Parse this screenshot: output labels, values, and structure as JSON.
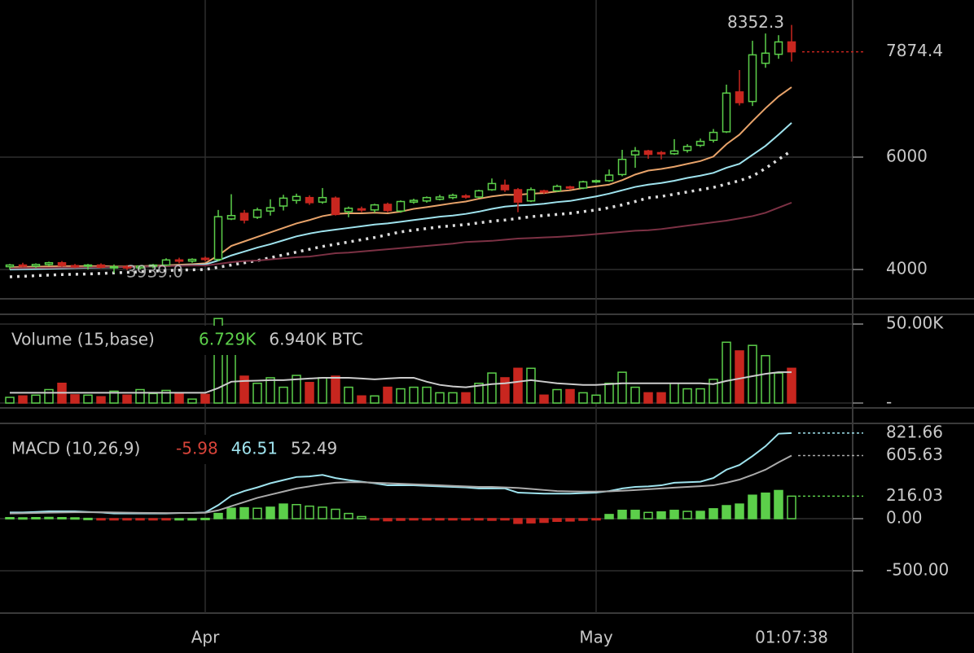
{
  "chart_data": {
    "type": "candlestick",
    "categories": [
      null,
      null,
      null,
      null,
      null,
      null,
      null,
      null,
      null,
      null,
      null,
      null,
      null,
      null,
      null,
      "Apr",
      null,
      null,
      null,
      null,
      null,
      null,
      null,
      null,
      null,
      null,
      null,
      null,
      null,
      null,
      null,
      null,
      null,
      null,
      null,
      null,
      null,
      null,
      null,
      null,
      null,
      null,
      null,
      null,
      null,
      "May",
      null,
      null,
      null,
      null,
      null,
      null,
      null,
      null,
      null,
      null,
      null,
      null,
      null,
      null,
      null
    ],
    "time_label": "01:07:38",
    "price": {
      "open": [
        4050,
        4080,
        4060,
        4090,
        4120,
        4070,
        4060,
        4080,
        4040,
        4050,
        4030,
        4060,
        4080,
        4170,
        4150,
        4200,
        4180,
        4900,
        5000,
        4930,
        5040,
        5130,
        5230,
        5280,
        5200,
        5270,
        5030,
        5080,
        5060,
        5160,
        5040,
        5200,
        5220,
        5250,
        5280,
        5310,
        5290,
        5420,
        5500,
        5420,
        5220,
        5400,
        5400,
        5470,
        5450,
        5560,
        5580,
        5690,
        6040,
        6110,
        6080,
        6060,
        6120,
        6210,
        6300,
        6450,
        7160,
        6990,
        7670,
        7830,
        8050
      ],
      "high": [
        4100,
        4120,
        4110,
        4140,
        4150,
        4100,
        4100,
        4110,
        4090,
        4080,
        4070,
        4100,
        4200,
        4210,
        4200,
        4230,
        5060,
        5340,
        5060,
        5100,
        5250,
        5330,
        5350,
        5320,
        5450,
        5300,
        5120,
        5120,
        5170,
        5190,
        5230,
        5260,
        5300,
        5330,
        5350,
        5340,
        5420,
        5620,
        5600,
        5450,
        5460,
        5420,
        5510,
        5490,
        5580,
        5600,
        5780,
        6130,
        6180,
        6130,
        6110,
        6320,
        6230,
        6330,
        6500,
        7290,
        7550,
        8070,
        8200,
        8170,
        8352.3
      ],
      "low": [
        4000,
        4040,
        4030,
        4060,
        4050,
        4020,
        4000,
        4020,
        3939,
        3990,
        4000,
        4020,
        4060,
        4110,
        4120,
        4150,
        4150,
        4880,
        4820,
        4900,
        4960,
        5050,
        5170,
        5150,
        5170,
        4960,
        4930,
        5020,
        5010,
        5020,
        5010,
        5170,
        5190,
        5230,
        5250,
        5260,
        5270,
        5400,
        5380,
        5020,
        5200,
        5340,
        5380,
        5420,
        5430,
        5540,
        5560,
        5660,
        5810,
        5970,
        5960,
        6040,
        6080,
        6180,
        6260,
        6430,
        6920,
        6910,
        7590,
        7750,
        7700
      ],
      "close": [
        4080,
        4060,
        4090,
        4120,
        4070,
        4060,
        4080,
        4040,
        4050,
        4030,
        4060,
        4080,
        4170,
        4150,
        4180,
        4180,
        4940,
        4960,
        4880,
        5060,
        5100,
        5270,
        5300,
        5190,
        5280,
        4980,
        5090,
        5060,
        5150,
        5050,
        5210,
        5230,
        5280,
        5290,
        5320,
        5290,
        5400,
        5530,
        5420,
        5200,
        5420,
        5380,
        5480,
        5450,
        5560,
        5580,
        5680,
        5960,
        6110,
        6050,
        6060,
        6110,
        6190,
        6280,
        6440,
        7140,
        6970,
        7820,
        7850,
        8050,
        7874.4
      ],
      "low_label": {
        "value": 3939,
        "label": "3939.0"
      },
      "up_color": "#5ccf4a",
      "down_color": "#c8261f",
      "ylim": [
        3493,
        8796
      ],
      "yticks": [
        4000,
        6000
      ],
      "grid": true,
      "series": [
        {
          "color": "#e8a36a",
          "dashed": false,
          "values": [
            4040,
            4045,
            4050,
            4055,
            4060,
            4060,
            4060,
            4060,
            4055,
            4055,
            4060,
            4065,
            4075,
            4085,
            4095,
            4110,
            4250,
            4420,
            4500,
            4580,
            4660,
            4740,
            4820,
            4880,
            4950,
            4990,
            5000,
            5000,
            5010,
            5000,
            5030,
            5080,
            5110,
            5145,
            5180,
            5210,
            5260,
            5300,
            5330,
            5330,
            5350,
            5360,
            5390,
            5410,
            5450,
            5480,
            5510,
            5590,
            5690,
            5760,
            5790,
            5830,
            5880,
            5930,
            6010,
            6230,
            6400,
            6640,
            6870,
            7080,
            7245
          ]
        },
        {
          "color": "#9fe3ee",
          "dashed": false,
          "values": [
            4000,
            4005,
            4010,
            4015,
            4020,
            4025,
            4030,
            4035,
            4040,
            4045,
            4050,
            4055,
            4060,
            4070,
            4080,
            4090,
            4160,
            4250,
            4320,
            4390,
            4450,
            4520,
            4590,
            4640,
            4680,
            4710,
            4740,
            4770,
            4800,
            4820,
            4850,
            4880,
            4910,
            4940,
            4960,
            4990,
            5030,
            5080,
            5120,
            5140,
            5150,
            5170,
            5200,
            5220,
            5260,
            5300,
            5350,
            5410,
            5470,
            5510,
            5540,
            5580,
            5630,
            5670,
            5720,
            5810,
            5880,
            6040,
            6200,
            6400,
            6610
          ]
        },
        {
          "color": "#dddddd",
          "dashed": true,
          "values": [
            3870,
            3880,
            3890,
            3900,
            3910,
            3915,
            3920,
            3930,
            3940,
            3950,
            3960,
            3970,
            3980,
            3990,
            3995,
            4000,
            4040,
            4080,
            4120,
            4160,
            4210,
            4260,
            4310,
            4360,
            4410,
            4450,
            4490,
            4530,
            4570,
            4620,
            4670,
            4700,
            4730,
            4760,
            4780,
            4800,
            4830,
            4860,
            4880,
            4910,
            4940,
            4960,
            4980,
            5000,
            5030,
            5060,
            5100,
            5150,
            5210,
            5275,
            5300,
            5340,
            5380,
            5420,
            5460,
            5520,
            5580,
            5660,
            5800,
            5960,
            6115
          ]
        },
        {
          "color": "#7c3144",
          "dashed": false,
          "values": [
            4020,
            4025,
            4030,
            4030,
            4035,
            4035,
            4040,
            4040,
            4045,
            4045,
            4050,
            4055,
            4060,
            4065,
            4070,
            4070,
            4100,
            4130,
            4150,
            4160,
            4180,
            4200,
            4220,
            4230,
            4260,
            4290,
            4300,
            4320,
            4340,
            4360,
            4380,
            4400,
            4420,
            4440,
            4460,
            4490,
            4500,
            4510,
            4530,
            4550,
            4560,
            4570,
            4580,
            4595,
            4610,
            4630,
            4650,
            4670,
            4690,
            4700,
            4720,
            4750,
            4780,
            4810,
            4840,
            4870,
            4910,
            4950,
            5010,
            5100,
            5190
          ]
        }
      ]
    },
    "volume": {
      "title": "Volume (15,base)",
      "readouts": [
        "6.729K",
        "6.940K BTC"
      ],
      "values": [
        3600,
        4500,
        5000,
        8500,
        12500,
        5200,
        5000,
        4000,
        7500,
        5000,
        8500,
        6000,
        8000,
        6000,
        2500,
        5500,
        53500,
        40000,
        17000,
        12500,
        16000,
        10000,
        17500,
        13000,
        16000,
        17000,
        10000,
        4500,
        4500,
        10000,
        9000,
        10000,
        10000,
        6500,
        6500,
        6500,
        12500,
        19000,
        16000,
        22000,
        22000,
        5000,
        8500,
        8500,
        6500,
        5000,
        12500,
        19500,
        10000,
        6500,
        6500,
        12500,
        9000,
        9000,
        15000,
        38500,
        33000,
        36500,
        30000,
        19000,
        22000
      ],
      "ylim": [
        0,
        56186
      ],
      "yticks": [
        {
          "value": 50000,
          "label": "50.00K"
        },
        {
          "value": 0,
          "label": "-"
        }
      ],
      "series": [
        {
          "color": "#cccccc",
          "values": [
            6500,
            6500,
            6500,
            6500,
            6500,
            6500,
            6500,
            6500,
            6500,
            6500,
            6500,
            6500,
            6500,
            6500,
            6500,
            6500,
            9500,
            13500,
            14000,
            14200,
            14500,
            14500,
            15000,
            15500,
            16000,
            16000,
            16000,
            15500,
            15000,
            15500,
            16000,
            16000,
            13500,
            11500,
            10500,
            10000,
            11000,
            12000,
            12500,
            13500,
            14500,
            13500,
            12500,
            12000,
            11500,
            11500,
            12000,
            12500,
            12500,
            12500,
            12500,
            12500,
            12500,
            12500,
            12000,
            14000,
            15500,
            17000,
            18500,
            19500,
            19500
          ]
        }
      ]
    },
    "macd": {
      "title": "MACD (10,26,9)",
      "readouts": [
        "-5.98",
        "46.51",
        "52.49"
      ],
      "ylim": [
        -898,
        914
      ],
      "yticks": [
        {
          "value": 0,
          "label": "0.00"
        },
        {
          "value": -500,
          "label": "-500.00"
        }
      ],
      "series": [
        {
          "color": "#9fe3ee",
          "values": [
            60,
            60,
            65,
            70,
            70,
            70,
            65,
            60,
            50,
            50,
            50,
            50,
            50,
            55,
            55,
            60,
            130,
            220,
            265,
            300,
            340,
            370,
            400,
            405,
            420,
            390,
            370,
            355,
            340,
            320,
            320,
            320,
            315,
            310,
            305,
            300,
            290,
            290,
            290,
            250,
            245,
            240,
            240,
            240,
            245,
            250,
            265,
            290,
            305,
            310,
            320,
            345,
            350,
            355,
            390,
            470,
            515,
            600,
            695,
            815,
            821.66
          ]
        },
        {
          "color": "#aaaaaa",
          "values": [
            50,
            52,
            55,
            58,
            60,
            62,
            62,
            62,
            60,
            58,
            56,
            55,
            54,
            54,
            55,
            57,
            80,
            120,
            160,
            200,
            230,
            260,
            290,
            310,
            330,
            345,
            350,
            350,
            345,
            340,
            335,
            330,
            325,
            320,
            315,
            310,
            305,
            305,
            300,
            295,
            285,
            275,
            265,
            262,
            260,
            260,
            262,
            268,
            275,
            282,
            290,
            298,
            305,
            312,
            320,
            345,
            375,
            420,
            470,
            540,
            605.63
          ]
        }
      ],
      "histogram": [
        10,
        8,
        10,
        12,
        10,
        8,
        3,
        -2,
        -10,
        -8,
        -6,
        -5,
        -4,
        0,
        0,
        3,
        50,
        100,
        105,
        100,
        110,
        140,
        135,
        120,
        110,
        90,
        50,
        20,
        -5,
        -20,
        -15,
        -10,
        -10,
        -10,
        -10,
        -10,
        -10,
        -15,
        -10,
        -45,
        -40,
        -35,
        -25,
        -22,
        -15,
        -10,
        40,
        80,
        80,
        60,
        65,
        80,
        70,
        70,
        95,
        125,
        140,
        225,
        245,
        270,
        216.03
      ]
    }
  }
}
